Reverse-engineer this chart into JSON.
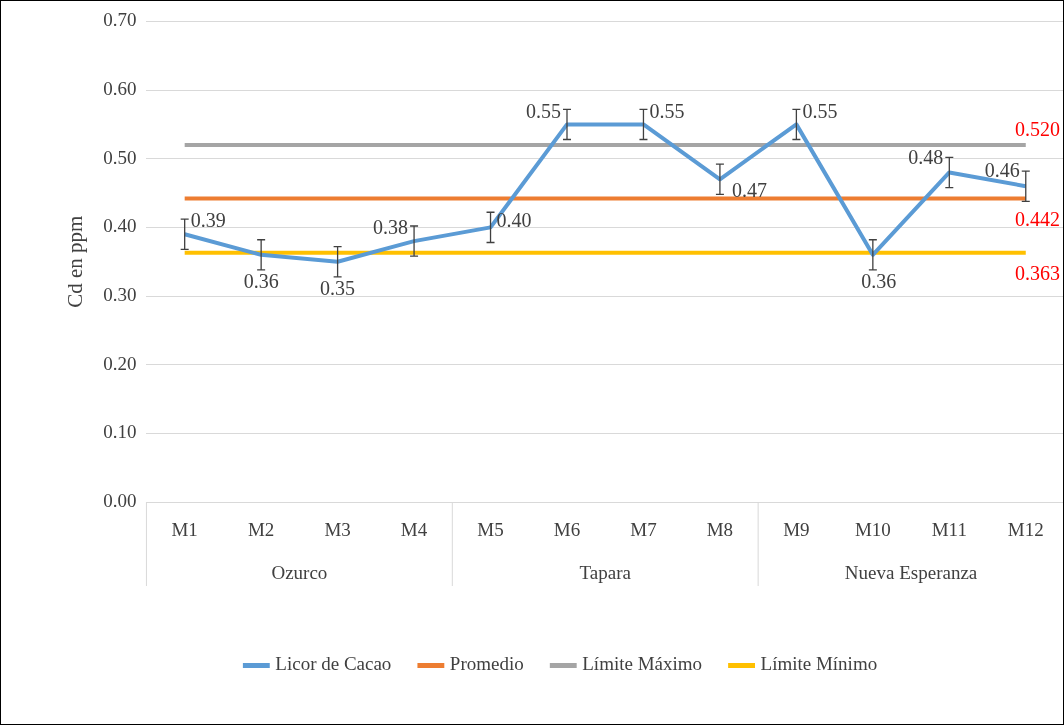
{
  "chart_data": {
    "type": "line",
    "ylabel": "Cd en ppm",
    "categories": [
      "M1",
      "M2",
      "M3",
      "M4",
      "M5",
      "M6",
      "M7",
      "M8",
      "M9",
      "M10",
      "M11",
      "M12"
    ],
    "annotations": [
      "Ozurco",
      "Tapara",
      "Nueva Esperanza"
    ],
    "series": [
      {
        "name": "Licor de Cacao",
        "color": "#5b9bd5",
        "values": [
          0.39,
          0.36,
          0.35,
          0.38,
          0.4,
          0.55,
          0.55,
          0.47,
          0.55,
          0.36,
          0.48,
          0.46
        ],
        "errors": [
          0.022,
          0.022,
          0.022,
          0.022,
          0.022,
          0.022,
          0.022,
          0.022,
          0.022,
          0.022,
          0.022,
          0.022
        ],
        "value_labels": [
          "0.39",
          "0.36",
          "0.35",
          "0.38",
          "0.40",
          "0.55",
          "0.55",
          "0.47",
          "0.55",
          "0.36",
          "0.48",
          "0.46"
        ]
      },
      {
        "name": "Promedio",
        "color": "#ed7d31",
        "values": [
          0.442,
          0.442,
          0.442,
          0.442,
          0.442,
          0.442,
          0.442,
          0.442,
          0.442,
          0.442,
          0.442,
          0.442
        ],
        "value_labels": [
          null,
          null,
          null,
          null,
          null,
          null,
          null,
          null,
          null,
          null,
          null,
          "0.442"
        ]
      },
      {
        "name": "Límite Máximo",
        "color": "#a5a5a5",
        "values": [
          0.52,
          0.52,
          0.52,
          0.52,
          0.52,
          0.52,
          0.52,
          0.52,
          0.52,
          0.52,
          0.52,
          0.52
        ],
        "value_labels": [
          null,
          null,
          null,
          null,
          null,
          null,
          null,
          null,
          null,
          null,
          null,
          "0.520"
        ]
      },
      {
        "name": "Límite Mínimo",
        "color": "#ffc000",
        "values": [
          0.363,
          0.363,
          0.363,
          0.363,
          0.363,
          0.363,
          0.363,
          0.363,
          0.363,
          0.363,
          0.363,
          0.363
        ],
        "value_labels": [
          null,
          null,
          null,
          null,
          null,
          null,
          null,
          null,
          null,
          null,
          null,
          "0.363"
        ]
      }
    ],
    "ylim": [
      0,
      0.7
    ],
    "yticks": [
      {
        "value": 0,
        "label": "0.00"
      },
      {
        "value": 0.1,
        "label": "0.10"
      },
      {
        "value": 0.2,
        "label": "0.20"
      },
      {
        "value": 0.3,
        "label": "0.30"
      },
      {
        "value": 0.4,
        "label": "0.40"
      },
      {
        "value": 0.5,
        "label": "0.50"
      },
      {
        "value": 0.6,
        "label": "0.60"
      },
      {
        "value": 0.7,
        "label": "0.70"
      }
    ],
    "grid": "y",
    "legend": "bottom",
    "marker": "none",
    "line_style": "solid"
  }
}
